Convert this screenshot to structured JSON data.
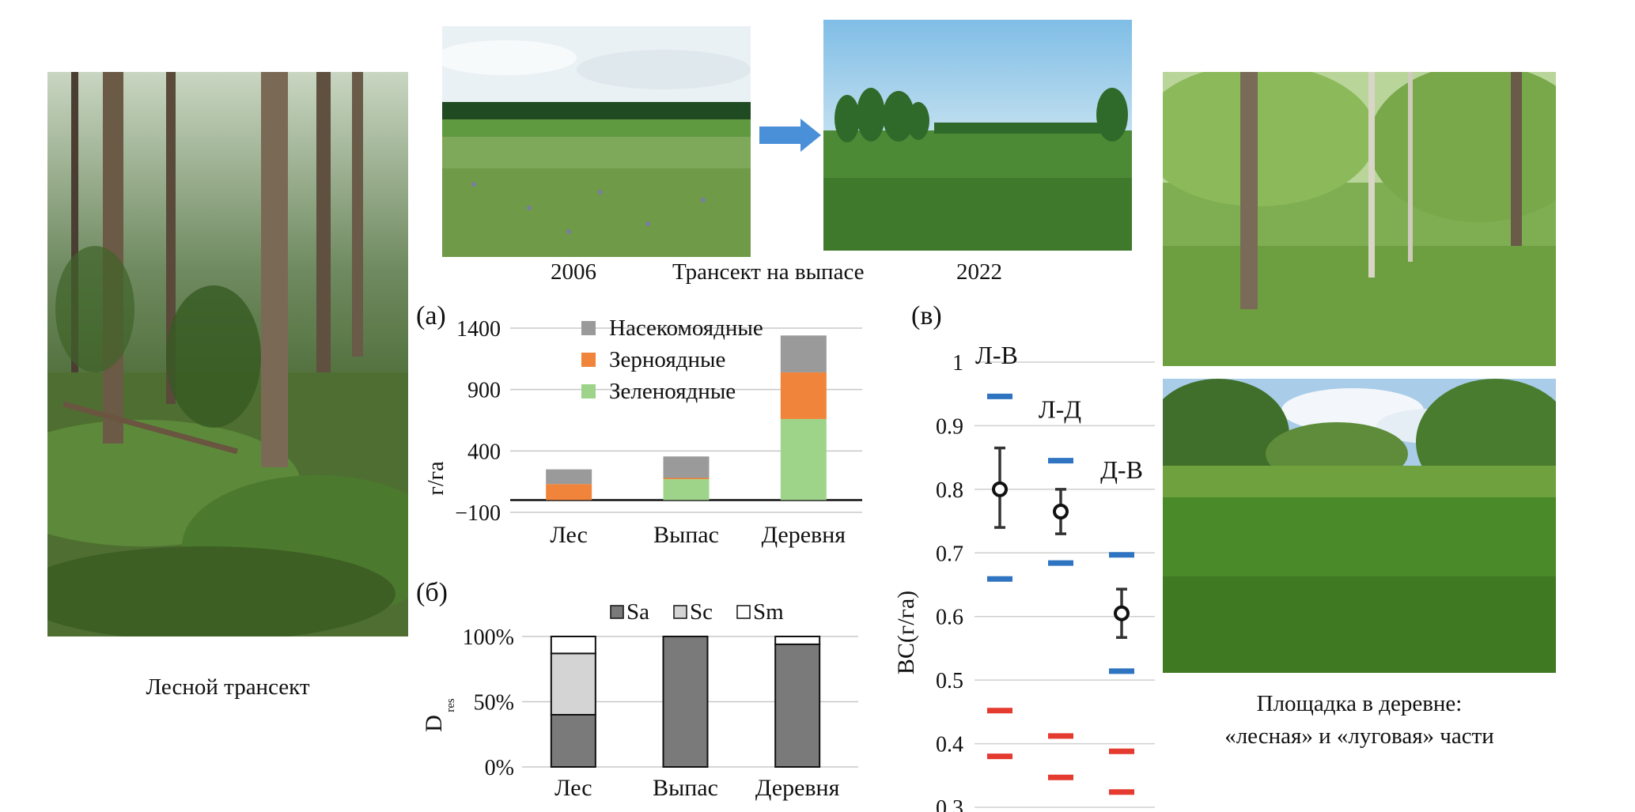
{
  "captions": {
    "forest": "Лесной трансект",
    "year_2006": "2006",
    "grazing": "Трансект на выпасе",
    "year_2022": "2022",
    "village_line1": "Площадка в деревне:",
    "village_line2": "«лесная» и «луговая» части"
  },
  "colors": {
    "insectivores": "#9a9a9a",
    "granivores": "#f0843a",
    "greenfeeders": "#9ed48a",
    "Sa": "#7a7a7a",
    "Sc": "#d4d4d4",
    "Sm": "#ffffff",
    "blue_marker": "#2e74c0",
    "red_marker": "#e43a2f",
    "arrow": "#4a90d9"
  },
  "chart_data": [
    {
      "id": "a",
      "panel_label": "(а)",
      "type": "bar",
      "stacked": true,
      "ylabel": "г/га",
      "yticks": [
        "1400",
        "900",
        "400",
        "−100"
      ],
      "ylim": [
        -100,
        1400
      ],
      "categories": [
        "Лес",
        "Выпас",
        "Деревня"
      ],
      "legend_position": "top-center",
      "series": [
        {
          "name": "Зеленоядные",
          "values": [
            0,
            170,
            660
          ]
        },
        {
          "name": "Зерноядные",
          "values": [
            130,
            10,
            380
          ]
        },
        {
          "name": "Насекомоядные",
          "values": [
            120,
            175,
            300
          ]
        }
      ]
    },
    {
      "id": "b",
      "panel_label": "(б)",
      "type": "bar",
      "stacked": true,
      "ylabel": "D",
      "ylabel_sub": "res",
      "yticks": [
        "100%",
        "50%",
        "0%"
      ],
      "ylim": [
        0,
        100
      ],
      "categories": [
        "Лес",
        "Выпас",
        "Деревня"
      ],
      "legend_position": "top-right",
      "series": [
        {
          "name": "Sa",
          "values": [
            40,
            100,
            94
          ]
        },
        {
          "name": "Sc",
          "values": [
            47,
            0,
            0
          ]
        },
        {
          "name": "Sm",
          "values": [
            13,
            0,
            6
          ]
        }
      ]
    },
    {
      "id": "v",
      "panel_label": "(в)",
      "type": "scatter",
      "ylabel": "BC(г/га)",
      "yticks": [
        "1",
        "0.9",
        "0.8",
        "0.7",
        "0.6",
        "0.5",
        "0.4",
        "0.3"
      ],
      "ylim": [
        0.3,
        1.0
      ],
      "categories": [
        "Л-В",
        "Л-Д",
        "Д-В"
      ],
      "points": [
        {
          "label": "Л-В",
          "mean": 0.8,
          "err_low": 0.74,
          "err_high": 0.865,
          "blue_high": 0.946,
          "blue_low": 0.659,
          "red_high": 0.452,
          "red_low": 0.38
        },
        {
          "label": "Л-Д",
          "mean": 0.765,
          "err_low": 0.73,
          "err_high": 0.8,
          "blue_high": 0.845,
          "blue_low": 0.684,
          "red_high": 0.412,
          "red_low": 0.347
        },
        {
          "label": "Д-В",
          "mean": 0.605,
          "err_low": 0.567,
          "err_high": 0.643,
          "blue_high": 0.697,
          "blue_low": 0.514,
          "red_high": 0.388,
          "red_low": 0.324
        }
      ]
    }
  ]
}
